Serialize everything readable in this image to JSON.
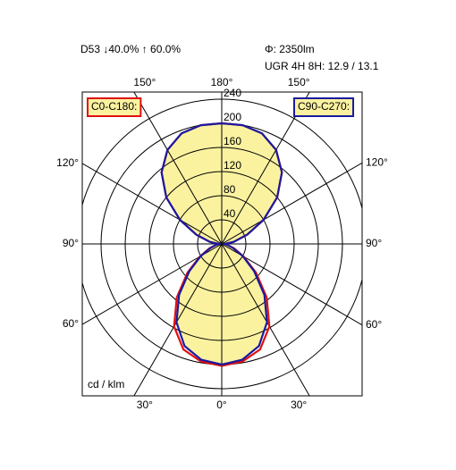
{
  "chart_data": {
    "type": "polar",
    "header_left": "D53 ↓40.0% ↑ 60.0%",
    "header_right": [
      "Φ: 2350lm",
      "UGR 4H 8H: 12.9 / 13.1"
    ],
    "unit_label": "cd / klm",
    "x": [
      0,
      10,
      20,
      30,
      40,
      50,
      60,
      70,
      80,
      90,
      100,
      110,
      120,
      130,
      140,
      150,
      160,
      170,
      180
    ],
    "series": [
      {
        "name": "C0-C180:",
        "color": "#e01010",
        "values": [
          202,
          198,
          186,
          158,
          116,
          74,
          42,
          22,
          10,
          5,
          20,
          45,
          80,
          120,
          155,
          180,
          195,
          200,
          200
        ]
      },
      {
        "name": "C90-C270:",
        "color": "#1a1aa0",
        "values": [
          200,
          195,
          180,
          150,
          110,
          70,
          40,
          20,
          10,
          5,
          20,
          45,
          80,
          120,
          155,
          180,
          195,
          200,
          200
        ]
      }
    ],
    "xticks": [
      {
        "value": 0,
        "label": "0°"
      },
      {
        "value": 30,
        "label": "30°"
      },
      {
        "value": 60,
        "label": "60°"
      },
      {
        "value": 90,
        "label": "90°"
      },
      {
        "value": 120,
        "label": "120°"
      },
      {
        "value": 150,
        "label": "150°"
      },
      {
        "value": 180,
        "label": "180°"
      }
    ],
    "ylim": [
      0,
      240
    ],
    "yticks": [
      40,
      80,
      120,
      160,
      200,
      240
    ],
    "fill_color": "#fbf2a0"
  }
}
